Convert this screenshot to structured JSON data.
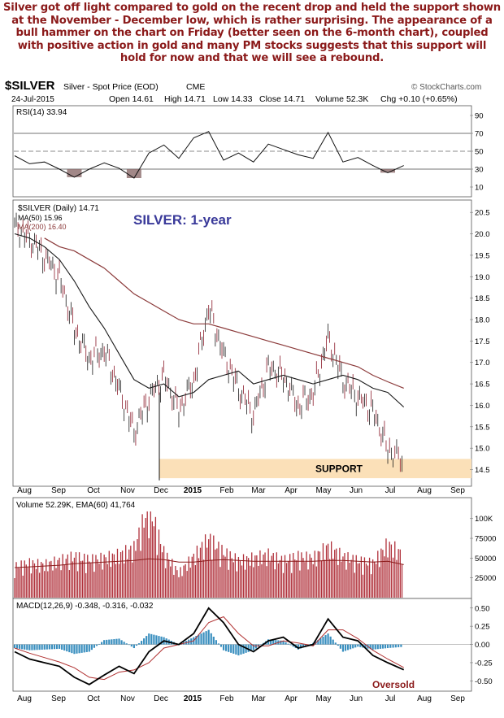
{
  "commentary": "Silver got off light compared to gold on the recent drop and held the support shown at the November - December low, which is rather surprising. The appearance of a bull hammer on the chart on Friday (better seen on the 6-month chart), coupled with positive action in gold and many PM stocks suggests that this support will hold for now and that we will see a rebound.",
  "header": {
    "symbol": "$SILVER",
    "name": "Silver - Spot Price (EOD)",
    "exchange": "CME",
    "date": "24-Jul-2015",
    "open": "Open 14.61",
    "high": "High 14.71",
    "low": "Low 14.33",
    "close": "Close 14.71",
    "volume": "Volume 52.3K",
    "chg": "Chg +0.10 (+0.65%)",
    "brand": "© StockCharts.com"
  },
  "colors": {
    "up": "#1a1a1a",
    "down": "#8b1a2a",
    "ma50": "#1a1a1a",
    "ma200": "#8b3a3a",
    "support": "#fbe0b8",
    "rsi_fill": "#8b6a6a",
    "volume_bar": "#b0303a",
    "volume_ema": "#8b1a1a",
    "macd_hist": "#3a8fbf",
    "title_blue": "#3a3a9a",
    "oversold": "#8b1a1a"
  },
  "chart_data": [
    {
      "type": "line",
      "panel": "rsi",
      "legend": "RSI(14) 33.94",
      "yticks": [
        90,
        70,
        50,
        30,
        10
      ],
      "ylim": [
        0,
        100
      ],
      "x": [
        "2014-07-24",
        "2014-08-07",
        "2014-08-21",
        "2014-09-04",
        "2014-09-18",
        "2014-10-02",
        "2014-10-16",
        "2014-10-30",
        "2014-11-13",
        "2014-11-27",
        "2014-12-11",
        "2014-12-25",
        "2015-01-08",
        "2015-01-22",
        "2015-02-05",
        "2015-02-19",
        "2015-03-05",
        "2015-03-19",
        "2015-04-02",
        "2015-04-16",
        "2015-04-30",
        "2015-05-14",
        "2015-05-28",
        "2015-06-11",
        "2015-06-25",
        "2015-07-09",
        "2015-07-24"
      ],
      "values": [
        45,
        36,
        38,
        30,
        21,
        30,
        37,
        31,
        20,
        48,
        57,
        42,
        65,
        72,
        40,
        48,
        38,
        58,
        52,
        46,
        42,
        71,
        38,
        43,
        34,
        26,
        34
      ]
    },
    {
      "type": "line",
      "panel": "price",
      "title": "SILVER: 1-year",
      "legend": [
        "$SILVER (Daily) 14.71",
        "MA(50) 15.96",
        "MA(200) 16.40"
      ],
      "yticks": [
        20.5,
        20.0,
        19.5,
        19.0,
        18.5,
        18.0,
        17.5,
        17.0,
        16.5,
        16.0,
        15.5,
        15.0,
        14.5
      ],
      "ylim": [
        14.15,
        20.75
      ],
      "x": [
        "2014-07-24",
        "2014-08-07",
        "2014-08-21",
        "2014-09-04",
        "2014-09-18",
        "2014-10-02",
        "2014-10-16",
        "2014-10-30",
        "2014-11-13",
        "2014-11-27",
        "2014-12-11",
        "2014-12-25",
        "2015-01-08",
        "2015-01-22",
        "2015-02-05",
        "2015-02-19",
        "2015-03-05",
        "2015-03-19",
        "2015-04-02",
        "2015-04-16",
        "2015-04-30",
        "2015-05-14",
        "2015-05-28",
        "2015-06-11",
        "2015-06-25",
        "2015-07-09",
        "2015-07-24"
      ],
      "series": [
        {
          "name": "$SILVER",
          "values": [
            20.2,
            19.9,
            19.5,
            19.0,
            17.8,
            17.1,
            17.3,
            16.4,
            15.4,
            16.2,
            16.7,
            15.9,
            16.6,
            18.3,
            17.2,
            16.4,
            15.8,
            16.9,
            16.7,
            16.0,
            16.3,
            17.6,
            16.6,
            16.2,
            15.9,
            15.0,
            14.71
          ]
        },
        {
          "name": "MA(50)",
          "values": [
            20.0,
            19.9,
            19.7,
            19.4,
            18.9,
            18.3,
            17.8,
            17.2,
            16.6,
            16.4,
            16.5,
            16.2,
            16.3,
            16.6,
            16.7,
            16.8,
            16.5,
            16.6,
            16.7,
            16.6,
            16.5,
            16.6,
            16.7,
            16.6,
            16.4,
            16.3,
            15.96
          ]
        },
        {
          "name": "MA(200)",
          "values": [
            null,
            null,
            19.9,
            19.7,
            19.6,
            19.4,
            19.2,
            18.9,
            18.6,
            18.4,
            18.2,
            18.0,
            17.9,
            17.9,
            17.8,
            17.7,
            17.6,
            17.5,
            17.4,
            17.3,
            17.2,
            17.1,
            17.0,
            16.9,
            16.7,
            16.55,
            16.4
          ]
        }
      ],
      "support": {
        "label": "SUPPORT",
        "range": [
          14.3,
          14.75
        ]
      }
    },
    {
      "type": "bar",
      "panel": "volume",
      "legend": "Volume 52.29K, EMA(60) 41,764",
      "yticks": [
        "100K",
        "75000",
        "50000",
        "25000"
      ],
      "ylim": [
        0,
        110000
      ],
      "x": [
        "2014-07-24",
        "2014-08-07",
        "2014-08-21",
        "2014-09-04",
        "2014-09-18",
        "2014-10-02",
        "2014-10-16",
        "2014-10-30",
        "2014-11-13",
        "2014-11-27",
        "2014-12-11",
        "2014-12-25",
        "2015-01-08",
        "2015-01-22",
        "2015-02-05",
        "2015-02-19",
        "2015-03-05",
        "2015-03-19",
        "2015-04-02",
        "2015-04-16",
        "2015-04-30",
        "2015-05-14",
        "2015-05-28",
        "2015-06-11",
        "2015-06-25",
        "2015-07-09",
        "2015-07-24"
      ],
      "values": [
        38000,
        42000,
        40000,
        45000,
        50000,
        46000,
        48000,
        52000,
        60000,
        112000,
        55000,
        30000,
        50000,
        72000,
        55000,
        45000,
        48000,
        52000,
        45000,
        50000,
        48000,
        62000,
        50000,
        45000,
        42000,
        65000,
        52290
      ],
      "ema": [
        38000,
        39000,
        40000,
        41000,
        43000,
        44000,
        45000,
        46000,
        47000,
        49000,
        48000,
        45000,
        45000,
        47000,
        48000,
        47000,
        46000,
        46000,
        46000,
        46000,
        46000,
        47000,
        47000,
        46000,
        45000,
        46000,
        41764
      ]
    },
    {
      "type": "line",
      "panel": "macd",
      "legend": "MACD(12,26,9) -0.348, -0.316, -0.032",
      "yticks": [
        0.5,
        0.25,
        0.0,
        -0.25,
        -0.5
      ],
      "ylim": [
        -0.63,
        0.62
      ],
      "annotation": "Oversold",
      "x": [
        "2014-07-24",
        "2014-08-07",
        "2014-08-21",
        "2014-09-04",
        "2014-09-18",
        "2014-10-02",
        "2014-10-16",
        "2014-10-30",
        "2014-11-13",
        "2014-11-27",
        "2014-12-11",
        "2014-12-25",
        "2015-01-08",
        "2015-01-22",
        "2015-02-05",
        "2015-02-19",
        "2015-03-05",
        "2015-03-19",
        "2015-04-02",
        "2015-04-16",
        "2015-04-30",
        "2015-05-14",
        "2015-05-28",
        "2015-06-11",
        "2015-06-25",
        "2015-07-09",
        "2015-07-24"
      ],
      "series": [
        {
          "name": "MACD",
          "values": [
            -0.1,
            -0.2,
            -0.25,
            -0.3,
            -0.45,
            -0.55,
            -0.42,
            -0.3,
            -0.4,
            -0.1,
            0.05,
            0.0,
            0.15,
            0.5,
            0.3,
            0.0,
            -0.1,
            0.05,
            0.1,
            -0.05,
            0.0,
            0.35,
            0.1,
            0.05,
            -0.15,
            -0.25,
            -0.348
          ]
        },
        {
          "name": "Signal",
          "values": [
            -0.05,
            -0.12,
            -0.18,
            -0.24,
            -0.32,
            -0.45,
            -0.48,
            -0.38,
            -0.35,
            -0.25,
            -0.05,
            0.0,
            0.05,
            0.3,
            0.38,
            0.15,
            -0.02,
            -0.02,
            0.05,
            0.02,
            -0.02,
            0.2,
            0.2,
            0.08,
            -0.08,
            -0.2,
            -0.316
          ]
        },
        {
          "name": "Histogram",
          "values": [
            -0.05,
            -0.08,
            -0.07,
            -0.06,
            -0.13,
            -0.1,
            0.06,
            0.08,
            -0.05,
            0.15,
            0.1,
            0.0,
            0.1,
            0.2,
            -0.08,
            -0.15,
            -0.08,
            0.07,
            0.05,
            -0.07,
            0.02,
            0.15,
            -0.1,
            -0.03,
            -0.07,
            -0.05,
            -0.032
          ]
        }
      ]
    }
  ],
  "xaxis": {
    "labels": [
      "Aug",
      "Sep",
      "Oct",
      "Nov",
      "Dec",
      "2015",
      "Feb",
      "Mar",
      "Apr",
      "May",
      "Jun",
      "Jul",
      "Aug",
      "Sep"
    ]
  }
}
